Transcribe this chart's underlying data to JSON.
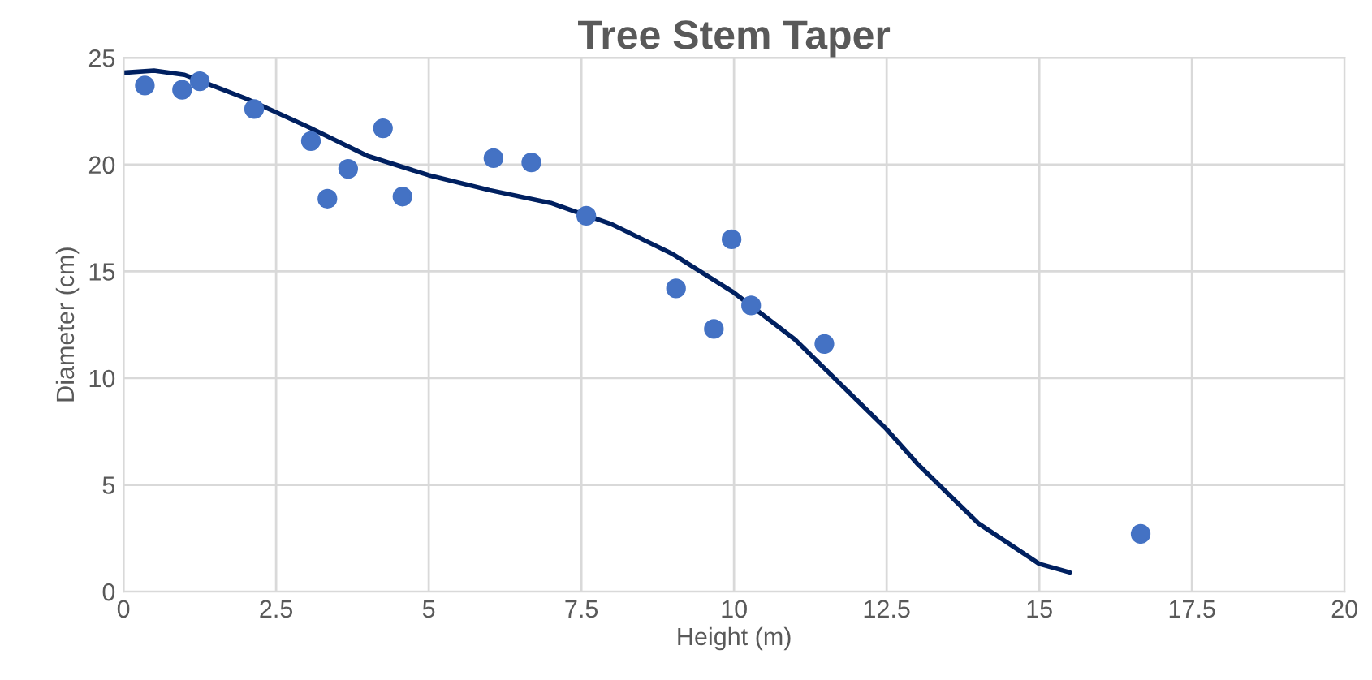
{
  "chart_data": {
    "type": "scatter",
    "title": "Tree Stem Taper",
    "xlabel": "Height (m)",
    "ylabel": "Diameter (cm)",
    "series": [
      {
        "color": "#4472c4",
        "marker": "circle",
        "x": [
          0.35,
          0.96,
          1.25,
          2.14,
          3.07,
          3.34,
          3.68,
          4.25,
          4.57,
          6.06,
          6.68,
          7.58,
          9.05,
          9.67,
          9.96,
          10.28,
          11.48,
          16.66
        ],
        "values": [
          23.7,
          23.5,
          23.9,
          22.6,
          21.1,
          18.4,
          19.8,
          21.7,
          18.5,
          20.3,
          20.1,
          17.6,
          14.2,
          12.3,
          16.5,
          13.4,
          11.6,
          2.7
        ]
      },
      {
        "type": "line",
        "color": "#002060",
        "marker": "none",
        "line_style": "solid",
        "x": [
          0,
          0.5,
          1,
          2,
          3,
          4,
          5,
          6,
          7,
          7.5,
          8,
          9,
          10,
          11,
          12,
          12.5,
          13,
          14,
          15,
          15.5
        ],
        "values": [
          24.3,
          24.4,
          24.2,
          23.1,
          21.8,
          20.4,
          19.5,
          18.8,
          18.2,
          17.7,
          17.2,
          15.8,
          14.0,
          11.8,
          9.0,
          7.6,
          6.0,
          3.2,
          1.3,
          0.9
        ]
      }
    ],
    "xlim": [
      0,
      20
    ],
    "xticks": [
      0,
      2.5,
      5,
      7.5,
      10,
      12.5,
      15,
      17.5,
      20
    ],
    "ylim": [
      0,
      25
    ],
    "yticks": [
      0,
      5,
      10,
      15,
      20,
      25
    ],
    "grid": true
  }
}
